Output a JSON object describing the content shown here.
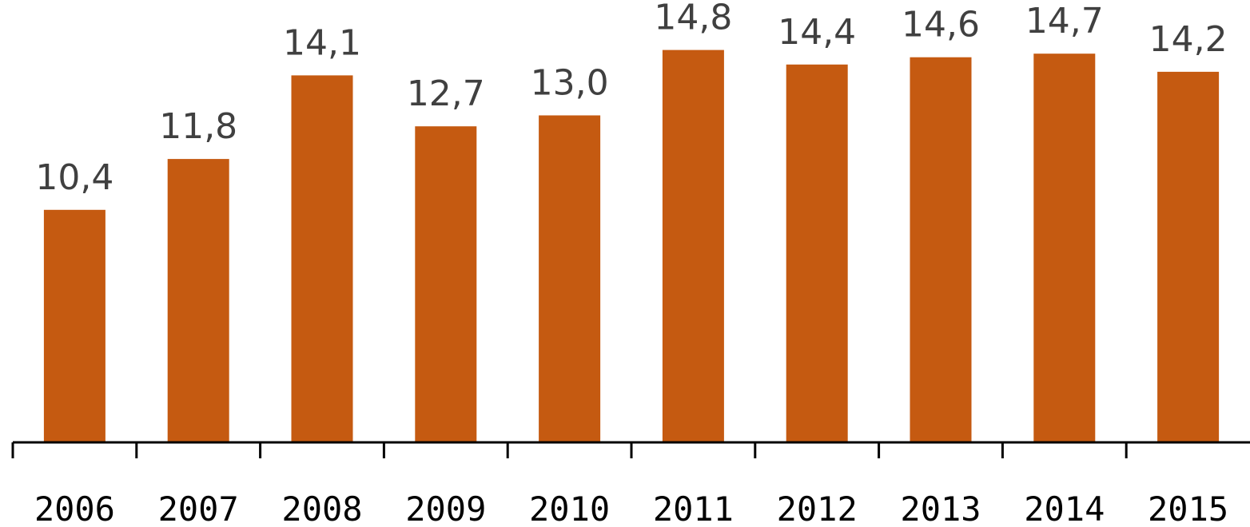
{
  "chart_data": {
    "type": "bar",
    "title": "",
    "xlabel": "",
    "ylabel": "",
    "categories": [
      "2006",
      "2007",
      "2008",
      "2009",
      "2010",
      "2011",
      "2012",
      "2013",
      "2014",
      "2015"
    ],
    "values": [
      10.4,
      11.8,
      14.1,
      12.7,
      13.0,
      14.8,
      14.4,
      14.6,
      14.7,
      14.2
    ],
    "value_labels": [
      "10,4",
      "11,8",
      "14,1",
      "12,7",
      "13,0",
      "14,8",
      "14,4",
      "14,6",
      "14,7",
      "14,2"
    ],
    "ylim": [
      4,
      15
    ],
    "grid": false,
    "legend": "none",
    "bar_color": "#C55A11"
  }
}
